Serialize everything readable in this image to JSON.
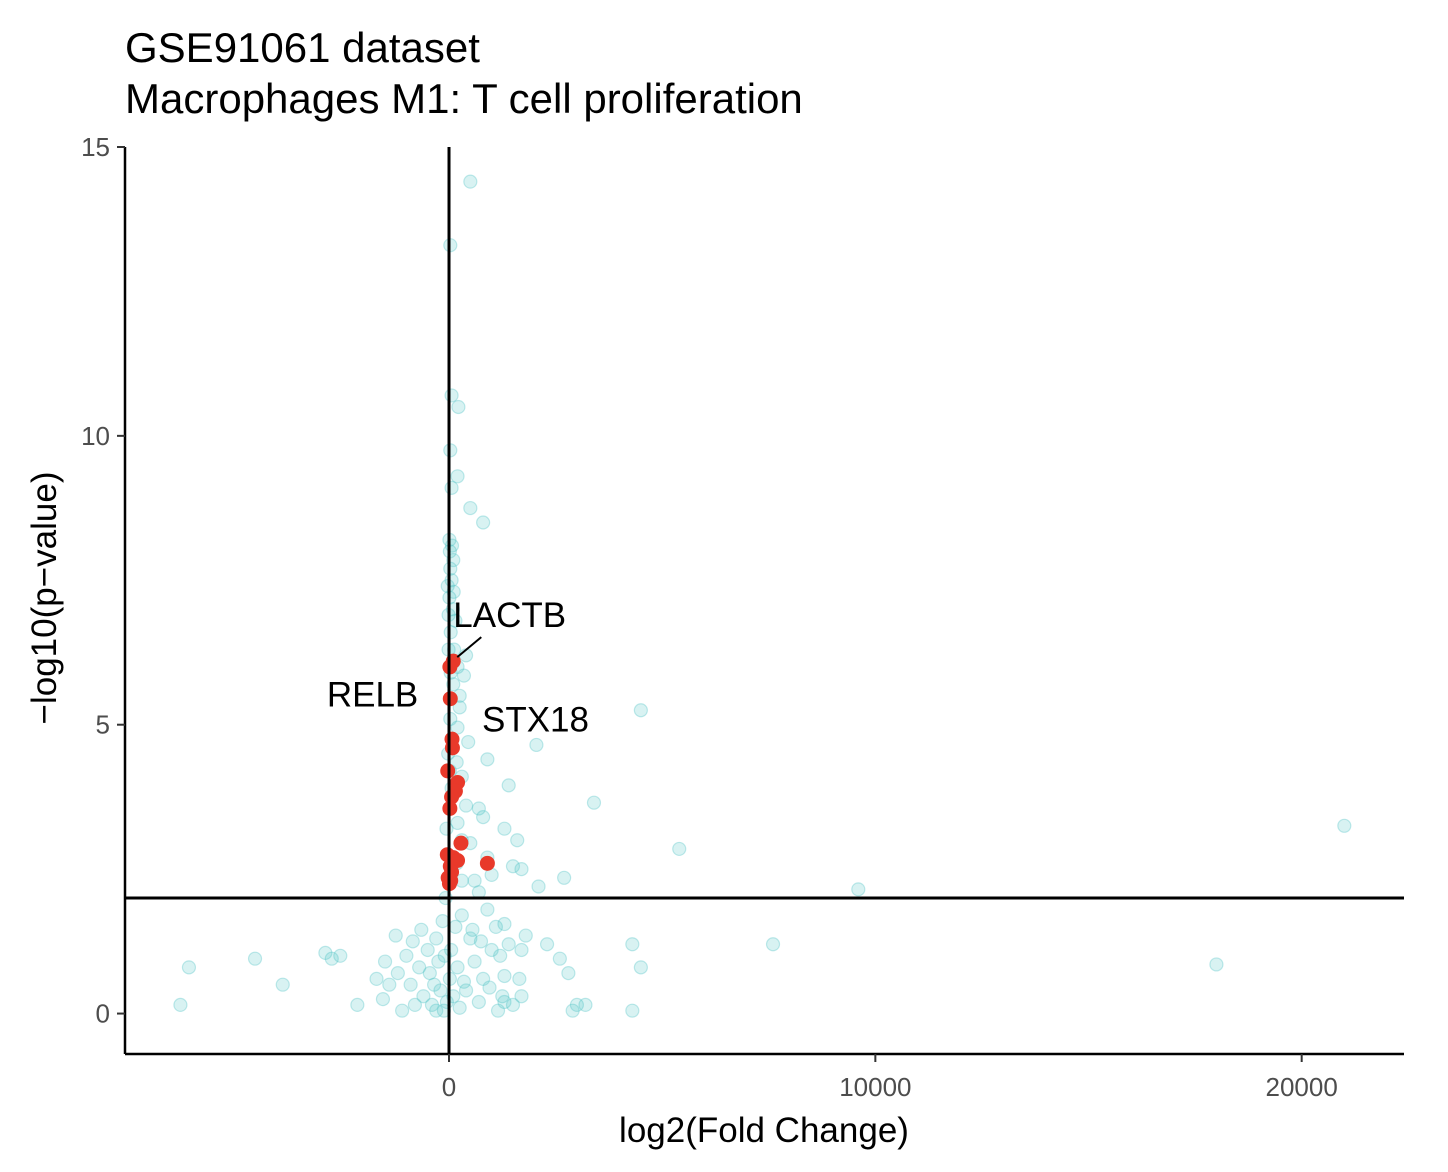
{
  "chart_data": {
    "type": "scatter",
    "title": "GSE91061 dataset",
    "subtitle": "Macrophages M1: T cell proliferation",
    "xlabel": "log2(Fold Change)",
    "ylabel": "−log10(p−value)",
    "xlim": [
      -7600,
      22400
    ],
    "ylim": [
      -0.7,
      15
    ],
    "x_ticks": [
      0,
      10000,
      20000
    ],
    "x_tick_labels": [
      "0",
      "10000",
      "20000"
    ],
    "y_ticks": [
      0,
      5,
      10,
      15
    ],
    "y_tick_labels": [
      "0",
      "5",
      "10",
      "15"
    ],
    "grid": false,
    "reference_lines": {
      "vertical_x": 0,
      "horizontal_y": 2
    },
    "colors": {
      "background_points": "#4fc3c6",
      "highlighted_points": "#e8392a",
      "axis": "#000000"
    },
    "series": [
      {
        "name": "background",
        "points": [
          [
            500,
            14.4
          ],
          [
            30,
            13.3
          ],
          [
            60,
            10.7
          ],
          [
            220,
            10.5
          ],
          [
            30,
            9.75
          ],
          [
            200,
            9.3
          ],
          [
            60,
            9.1
          ],
          [
            500,
            8.75
          ],
          [
            800,
            8.5
          ],
          [
            10,
            8.2
          ],
          [
            20,
            8.0
          ],
          [
            100,
            7.85
          ],
          [
            30,
            7.7
          ],
          [
            60,
            7.5
          ],
          [
            -30,
            7.4
          ],
          [
            10,
            7.2
          ],
          [
            90,
            7.0
          ],
          [
            -10,
            6.9
          ],
          [
            150,
            6.8
          ],
          [
            40,
            6.6
          ],
          [
            400,
            6.2
          ],
          [
            200,
            6.0
          ],
          [
            350,
            5.85
          ],
          [
            100,
            5.7
          ],
          [
            4500,
            5.25
          ],
          [
            250,
            5.3
          ],
          [
            30,
            5.1
          ],
          [
            200,
            4.95
          ],
          [
            2050,
            4.65
          ],
          [
            -20,
            4.5
          ],
          [
            180,
            4.35
          ],
          [
            900,
            4.4
          ],
          [
            300,
            4.1
          ],
          [
            1400,
            3.95
          ],
          [
            3400,
            3.65
          ],
          [
            100,
            3.8
          ],
          [
            400,
            3.6
          ],
          [
            700,
            3.55
          ],
          [
            200,
            3.3
          ],
          [
            800,
            3.4
          ],
          [
            1300,
            3.2
          ],
          [
            1600,
            3.0
          ],
          [
            500,
            2.95
          ],
          [
            5400,
            2.85
          ],
          [
            900,
            2.7
          ],
          [
            1500,
            2.55
          ],
          [
            1700,
            2.5
          ],
          [
            2700,
            2.35
          ],
          [
            2100,
            2.2
          ],
          [
            9600,
            2.15
          ],
          [
            300,
            2.3
          ],
          [
            700,
            2.1
          ],
          [
            21000,
            3.25
          ],
          [
            18000,
            0.85
          ],
          [
            7600,
            1.2
          ],
          [
            4300,
            1.2
          ],
          [
            4500,
            0.8
          ],
          [
            4300,
            0.05
          ],
          [
            3200,
            0.15
          ],
          [
            2900,
            0.05
          ],
          [
            3000,
            0.15
          ],
          [
            2600,
            0.95
          ],
          [
            2800,
            0.7
          ],
          [
            2300,
            1.2
          ],
          [
            1700,
            0.3
          ],
          [
            1500,
            0.15
          ],
          [
            1300,
            0.2
          ],
          [
            1300,
            0.65
          ],
          [
            1200,
            1.0
          ],
          [
            1400,
            1.2
          ],
          [
            1100,
            1.5
          ],
          [
            1000,
            1.1
          ],
          [
            900,
            1.8
          ],
          [
            800,
            0.6
          ],
          [
            700,
            0.2
          ],
          [
            600,
            0.9
          ],
          [
            500,
            1.3
          ],
          [
            400,
            0.4
          ],
          [
            300,
            1.7
          ],
          [
            250,
            0.1
          ],
          [
            200,
            0.8
          ],
          [
            150,
            1.5
          ],
          [
            100,
            0.3
          ],
          [
            50,
            1.1
          ],
          [
            20,
            0.6
          ],
          [
            -50,
            0.2
          ],
          [
            -100,
            1.0
          ],
          [
            -150,
            1.6
          ],
          [
            -200,
            0.4
          ],
          [
            -250,
            0.9
          ],
          [
            -300,
            1.3
          ],
          [
            -350,
            0.5
          ],
          [
            -400,
            0.15
          ],
          [
            -450,
            0.7
          ],
          [
            -500,
            1.1
          ],
          [
            -600,
            0.3
          ],
          [
            -700,
            0.8
          ],
          [
            -800,
            0.15
          ],
          [
            -900,
            0.5
          ],
          [
            -1000,
            1.0
          ],
          [
            -1200,
            0.7
          ],
          [
            -1400,
            0.5
          ],
          [
            -1500,
            0.9
          ],
          [
            -1700,
            0.6
          ],
          [
            -1550,
            0.25
          ],
          [
            -1250,
            1.35
          ],
          [
            -2150,
            0.15
          ],
          [
            -2550,
            1.0
          ],
          [
            -2750,
            0.95
          ],
          [
            -2900,
            1.05
          ],
          [
            -3900,
            0.5
          ],
          [
            -4550,
            0.95
          ],
          [
            -6100,
            0.8
          ],
          [
            -6300,
            0.15
          ],
          [
            1300,
            1.55
          ],
          [
            1250,
            0.3
          ],
          [
            1700,
            1.1
          ],
          [
            1800,
            1.35
          ],
          [
            1650,
            0.6
          ],
          [
            600,
            2.3
          ],
          [
            1000,
            2.4
          ],
          [
            450,
            4.7
          ],
          [
            250,
            5.5
          ],
          [
            120,
            6.3
          ],
          [
            80,
            2.7
          ],
          [
            -60,
            3.2
          ],
          [
            -80,
            2.0
          ],
          [
            60,
            3.9
          ],
          [
            180,
            2.6
          ],
          [
            300,
            3.0
          ],
          [
            20,
            4.2
          ],
          [
            350,
            0.55
          ],
          [
            550,
            1.45
          ],
          [
            750,
            1.25
          ],
          [
            950,
            0.45
          ],
          [
            1150,
            0.05
          ],
          [
            -120,
            0.05
          ],
          [
            -300,
            0.05
          ],
          [
            -650,
            1.45
          ],
          [
            -850,
            1.25
          ],
          [
            -1100,
            0.05
          ],
          [
            40,
            5.9
          ],
          [
            -10,
            6.3
          ],
          [
            110,
            7.3
          ],
          [
            70,
            8.1
          ]
        ]
      },
      {
        "name": "highlighted",
        "points": [
          [
            100,
            6.1
          ],
          [
            20,
            6.0
          ],
          [
            30,
            5.45
          ],
          [
            70,
            4.75
          ],
          [
            80,
            4.6
          ],
          [
            -30,
            4.2
          ],
          [
            200,
            4.0
          ],
          [
            150,
            3.85
          ],
          [
            60,
            3.75
          ],
          [
            20,
            3.55
          ],
          [
            280,
            2.95
          ],
          [
            900,
            2.6
          ],
          [
            100,
            2.7
          ],
          [
            -40,
            2.75
          ],
          [
            200,
            2.65
          ],
          [
            30,
            2.55
          ],
          [
            60,
            2.45
          ],
          [
            -20,
            2.35
          ],
          [
            40,
            2.3
          ],
          [
            10,
            2.25
          ]
        ]
      }
    ],
    "annotations": [
      {
        "label": "LACTB",
        "x": 100,
        "y": 6.1
      },
      {
        "label": "RELB",
        "x": 30,
        "y": 5.45
      },
      {
        "label": "STX18",
        "x": 70,
        "y": 5.3
      }
    ]
  }
}
